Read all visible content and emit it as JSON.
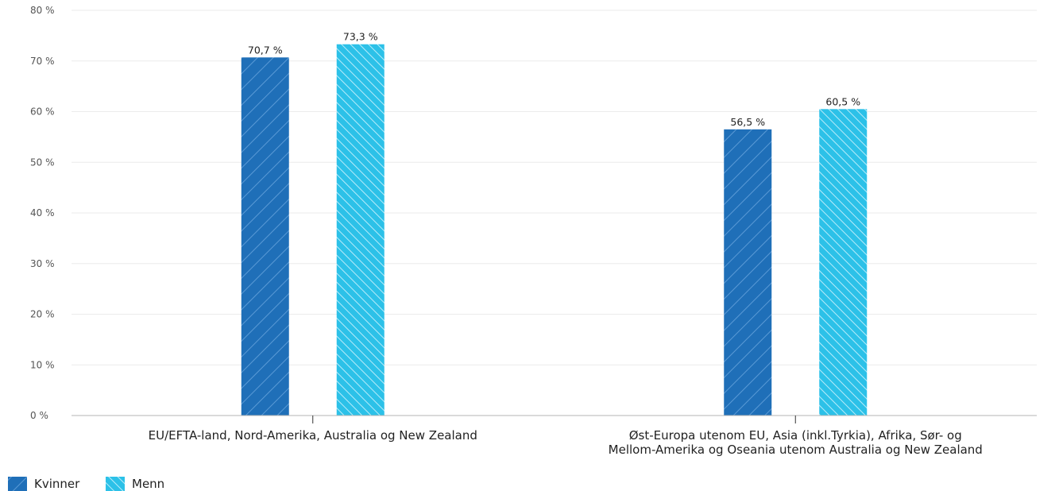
{
  "chart_data": {
    "type": "bar",
    "categories": [
      [
        "EU/EFTA-land, Nord-Amerika, Australia og New Zealand"
      ],
      [
        "Øst-Europa utenom EU, Asia (inkl.Tyrkia), Afrika, Sør- og",
        "Mellom-Amerika og Oseania utenom Australia og New Zealand"
      ]
    ],
    "series": [
      {
        "name": "Kvinner",
        "values": [
          70.7,
          56.5
        ],
        "labels": [
          "70,7 %",
          "56,5 %"
        ],
        "color": "#1f6fb8"
      },
      {
        "name": "Menn",
        "values": [
          73.3,
          60.5
        ],
        "labels": [
          "73,3 %",
          "60,5 %"
        ],
        "color": "#2cc1e8"
      }
    ],
    "ylim": [
      0,
      80
    ],
    "yticks": [
      "0 %",
      "10 %",
      "20 %",
      "30 %",
      "40 %",
      "50 %",
      "60 %",
      "70 %",
      "80 %"
    ],
    "grid": true,
    "legend_position": "bottom-left"
  }
}
